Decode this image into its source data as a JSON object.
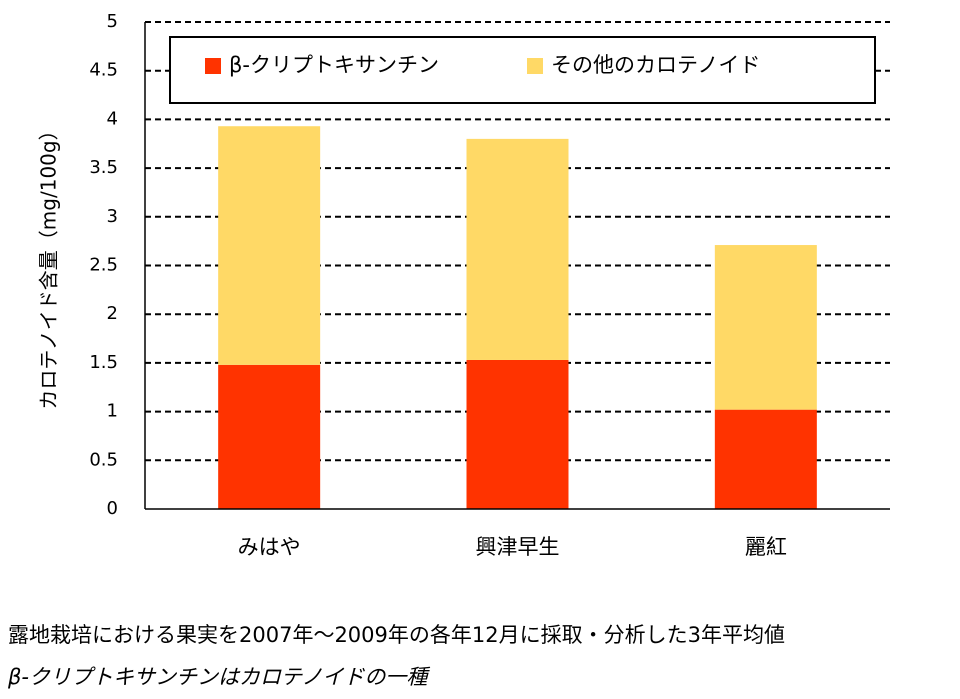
{
  "chart_data": {
    "type": "stacked_bar",
    "y_label": "カロテノイド含量（mg/100g）",
    "categories": [
      "みはや",
      "興津早生",
      "麗紅"
    ],
    "series": [
      {
        "name": "β-クリプトキサンチン",
        "color": "#ff3300",
        "values": [
          1.48,
          1.53,
          1.02
        ]
      },
      {
        "name": "その他のカロテノイド",
        "color": "#ffd966",
        "values": [
          2.45,
          2.27,
          1.69
        ]
      }
    ],
    "ylim": [
      0,
      5
    ],
    "yticks": [
      0,
      0.5,
      1,
      1.5,
      2,
      2.5,
      3,
      3.5,
      4,
      4.5,
      5
    ],
    "grid": true,
    "notes": [
      "露地栽培における果実を2007年～2009年の各年12月に採取・分析した3年平均値",
      "β-クリプトキサンチンはカロテノイドの一種"
    ]
  }
}
